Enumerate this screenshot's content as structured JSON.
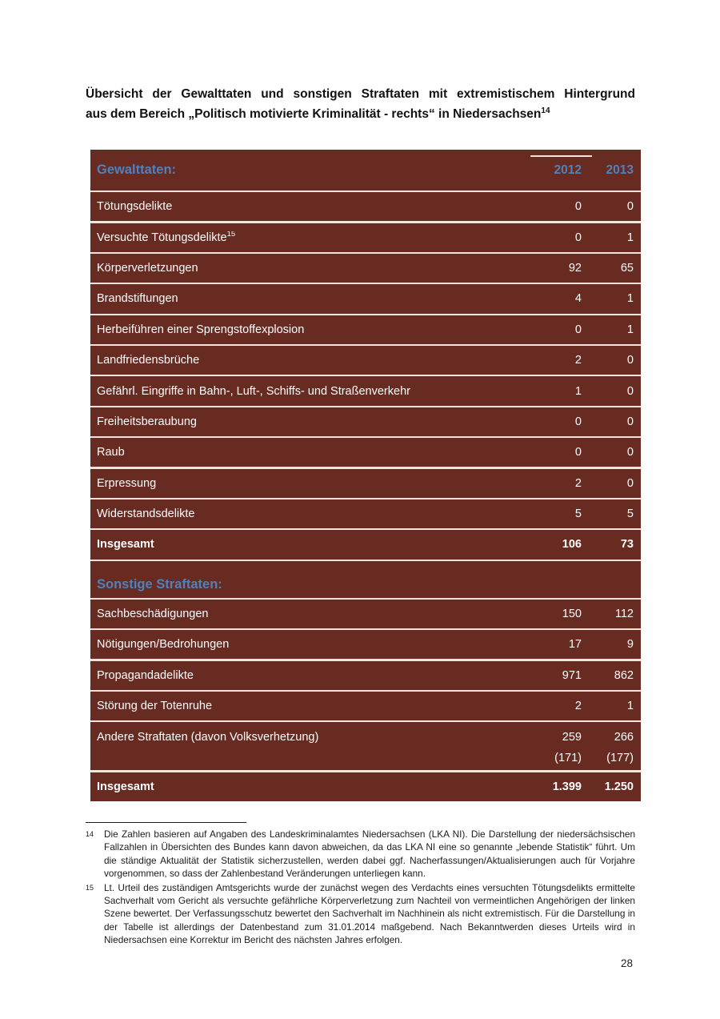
{
  "title": {
    "line1": "Übersicht der Gewalttaten und sonstigen Straftaten mit extremistischem Hintergrund",
    "line2": "aus dem Bereich „Politisch motivierte Kriminalität - rechts“ in Niedersachsen",
    "footnote_ref": "14"
  },
  "colors": {
    "table_background": "#682b22",
    "header_blue": "#4f81bd",
    "row_divider": "#f3e4dd",
    "table_text": "#fdfdfd"
  },
  "table": {
    "sections": [
      {
        "header": {
          "label": "Gewalttaten:",
          "col1": "2012",
          "col2": "2013"
        },
        "rows": [
          {
            "label": "Tötungsdelikte",
            "v2012": "0",
            "v2013": "0"
          },
          {
            "label": "Versuchte Tötungsdelikte",
            "sup": "15",
            "v2012": "0",
            "v2013": "1"
          },
          {
            "label": "Körperverletzungen",
            "v2012": "92",
            "v2013": "65"
          },
          {
            "label": "Brandstiftungen",
            "v2012": "4",
            "v2013": "1"
          },
          {
            "label": "Herbeiführen einer Sprengstoffexplosion",
            "v2012": "0",
            "v2013": "1"
          },
          {
            "label": "Landfriedensbrüche",
            "v2012": "2",
            "v2013": "0"
          },
          {
            "label": "Gefährl. Eingriffe in Bahn-, Luft-, Schiffs- und Straßenverkehr",
            "v2012": "1",
            "v2013": "0"
          },
          {
            "label": "Freiheitsberaubung",
            "v2012": "0",
            "v2013": "0"
          },
          {
            "label": "Raub",
            "v2012": "0",
            "v2013": "0"
          },
          {
            "label": "Erpressung",
            "v2012": "2",
            "v2013": "0"
          },
          {
            "label": "Widerstandsdelikte",
            "v2012": "5",
            "v2013": "5"
          },
          {
            "label": "Insgesamt",
            "bold": true,
            "v2012": "106",
            "v2013": "73"
          }
        ]
      },
      {
        "header": {
          "label": "Sonstige Straftaten:"
        },
        "rows": [
          {
            "label": "Sachbeschädigungen",
            "v2012": "150",
            "v2013": "112"
          },
          {
            "label": "Nötigungen/Bedrohungen",
            "v2012": "17",
            "v2013": "9"
          },
          {
            "label": "Propagandadelikte",
            "v2012": "971",
            "v2013": "862"
          },
          {
            "label": "Störung der Totenruhe",
            "v2012": "2",
            "v2013": "1"
          },
          {
            "label": "Andere Straftaten (davon Volksverhetzung)",
            "v2012": "259",
            "v2013": "266",
            "v2012b": "(171)",
            "v2013b": "(177)"
          },
          {
            "label": "Insgesamt",
            "bold": true,
            "v2012": "1.399",
            "v2013": "1.250"
          }
        ]
      }
    ]
  },
  "footnotes": [
    {
      "marker": "14",
      "text": "Die Zahlen basieren auf Angaben des Landeskriminalamtes Niedersachsen (LKA NI). Die Darstellung der niedersächsischen Fallzahlen in Übersichten des Bundes kann davon abweichen, da das LKA NI eine so genannte „lebende Statistik“ führt. Um die ständige Aktualität der Statistik sicherzustellen, werden dabei ggf. Nacherfassungen/Aktualisierungen auch für Vorjahre vorgenommen, so dass der Zahlenbestand Veränderungen unterliegen kann."
    },
    {
      "marker": "15",
      "text": "Lt. Urteil des zuständigen Amtsgerichts wurde der zunächst wegen des Verdachts eines versuchten Tötungsdelikts ermittelte Sachverhalt vom Gericht als versuchte gefährliche Körperverletzung zum Nachteil von vermeintlichen Angehörigen der linken Szene bewertet. Der Verfassungsschutz bewertet den Sachverhalt im Nachhinein als nicht extremistisch. Für die Darstellung in der Tabelle ist allerdings der Datenbestand zum 31.01.2014 maßgebend. Nach Bekanntwerden dieses Urteils wird in Niedersachsen eine Korrektur im Bericht des nächsten Jahres erfolgen."
    }
  ],
  "page": {
    "number": "28"
  }
}
